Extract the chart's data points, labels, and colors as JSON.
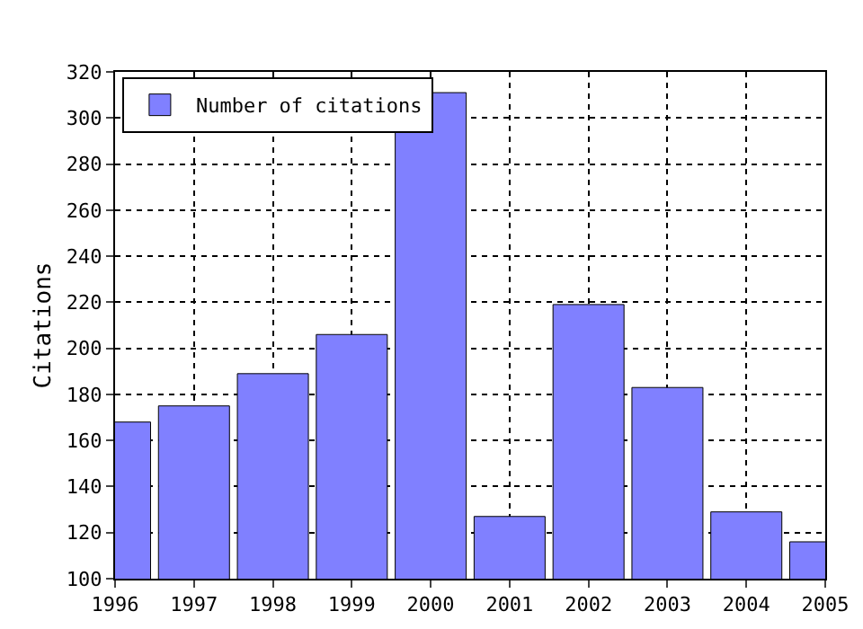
{
  "chart_data": {
    "type": "bar",
    "ylabel": "Citations",
    "x": [
      1996,
      1997,
      1998,
      1999,
      2000,
      2001,
      2002,
      2003,
      2004,
      2005
    ],
    "series": [
      {
        "name": "Number of citations",
        "color": "#8080ff",
        "values": [
          168,
          175,
          189,
          206,
          311,
          127,
          219,
          183,
          129,
          116
        ]
      }
    ],
    "xlim": [
      1996,
      2005
    ],
    "xticks": [
      1996,
      1997,
      1998,
      1999,
      2000,
      2001,
      2002,
      2003,
      2004,
      2005
    ],
    "ylim": [
      100,
      320
    ],
    "yticks": [
      100,
      120,
      140,
      160,
      180,
      200,
      220,
      240,
      260,
      280,
      300,
      320
    ],
    "grid": true,
    "legend": "top left"
  }
}
